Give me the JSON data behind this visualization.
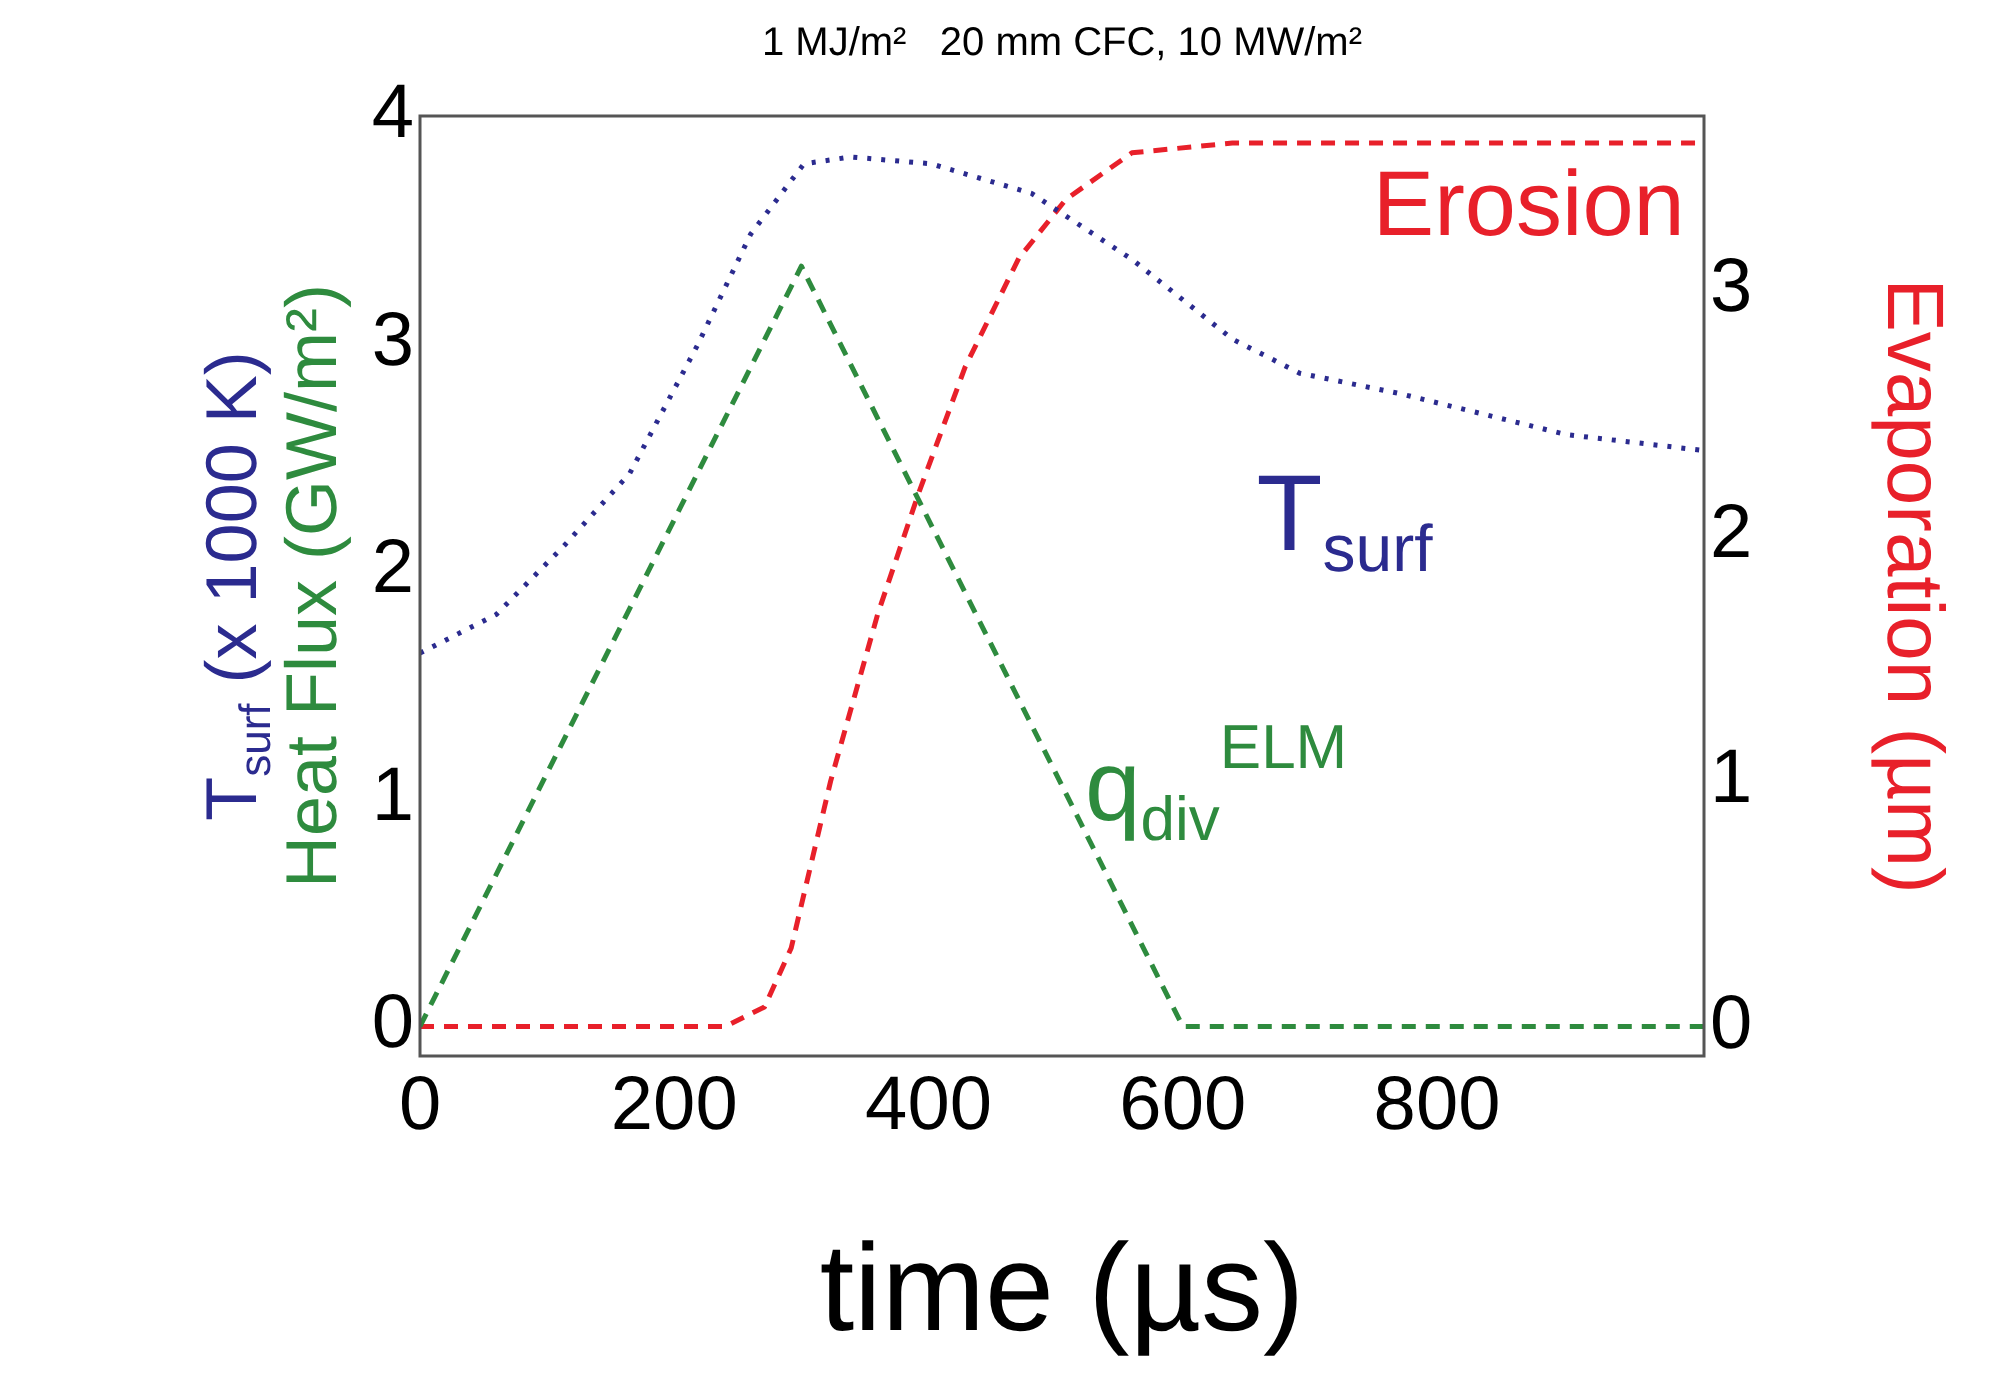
{
  "chart_data": {
    "type": "line",
    "title": "1 MJ/m²   20 mm CFC, 10 MW/m²",
    "xlabel": "time (µs)",
    "ylabel": "Heat Flux (GW/m²)",
    "y2label": "Evaporation (µm)",
    "annotations": [
      "T$_{surf}$ (x 1000 K)"
    ],
    "xlim": [
      0,
      1010
    ],
    "xticks": [
      0,
      200,
      400,
      600,
      800
    ],
    "ylim": [
      -0.13,
      4
    ],
    "yticks": [
      0,
      1,
      2,
      3,
      4
    ],
    "y2lim": [
      -0.12,
      3.71
    ],
    "y2ticks": [
      0,
      1,
      2,
      3
    ],
    "grid": false,
    "legend": false,
    "marker": "none",
    "series": [
      {
        "name": "T$_{surf}$",
        "color": "#2b2b8f",
        "line_style": "dotted",
        "x": [
          0,
          60,
          113,
          165,
          218,
          260,
          302,
          339,
          402,
          481,
          560,
          639,
          692,
          771,
          902,
          1010
        ],
        "values": [
          1.64,
          1.81,
          2.11,
          2.43,
          2.99,
          3.48,
          3.79,
          3.82,
          3.79,
          3.66,
          3.37,
          3.02,
          2.87,
          2.78,
          2.6,
          2.53
        ]
      },
      {
        "name": "q$_{div}$$^{ELM}$",
        "color": "#2e8b3e",
        "line_style": "dashed",
        "x": [
          0,
          300,
          600,
          1010
        ],
        "values": [
          0,
          3.34,
          0,
          0
        ]
      },
      {
        "name": "Erosion",
        "color": "#e8202a",
        "line_style": "dashed",
        "axis": "y2",
        "x": [
          0,
          240,
          271,
          292,
          323,
          360,
          392,
          429,
          471,
          508,
          560,
          639,
          929,
          1010
        ],
        "values": [
          0,
          0,
          0.08,
          0.32,
          1.0,
          1.68,
          2.17,
          2.69,
          3.13,
          3.37,
          3.56,
          3.6,
          3.6,
          3.6
        ]
      }
    ]
  }
}
